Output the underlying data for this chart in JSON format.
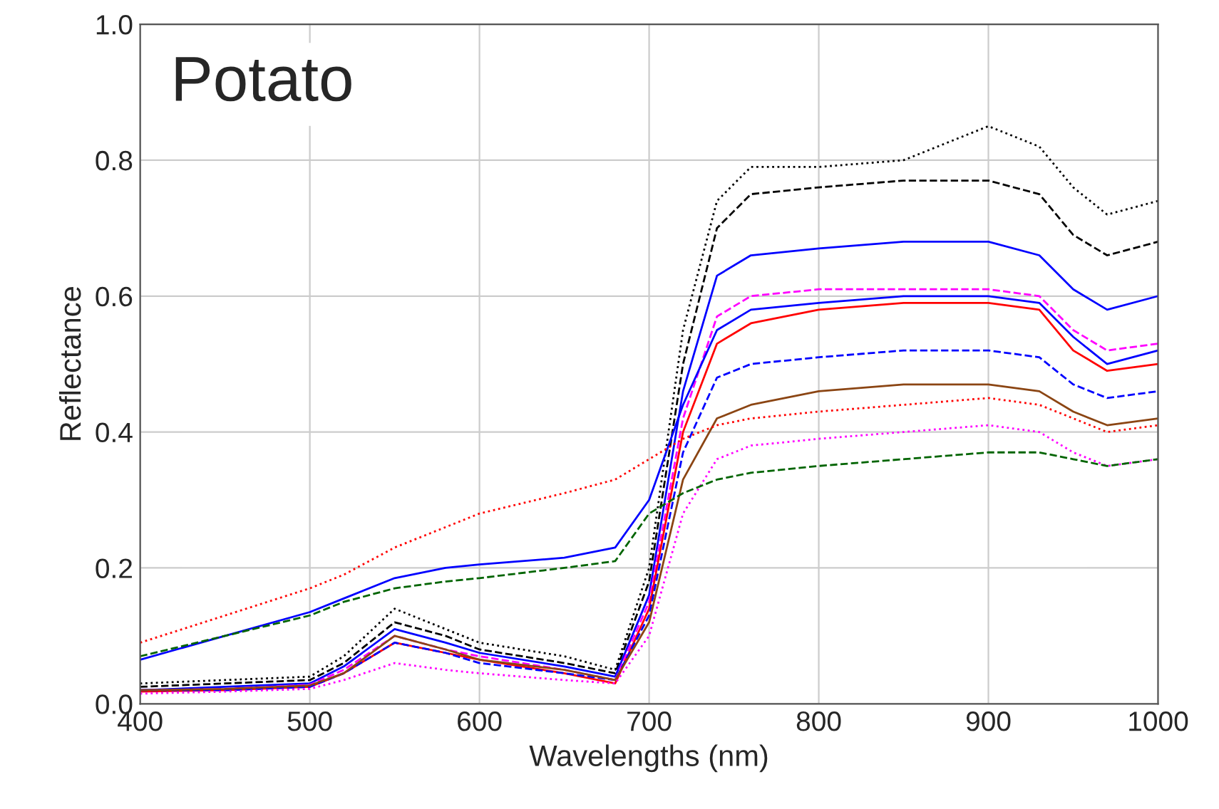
{
  "chart_data": {
    "type": "line",
    "title": "Potato",
    "xlabel": "Wavelengths (nm)",
    "ylabel": "Reflectance",
    "x": [
      400,
      450,
      500,
      520,
      550,
      580,
      600,
      650,
      680,
      700,
      720,
      740,
      760,
      800,
      850,
      900,
      930,
      950,
      970,
      1000
    ],
    "series": [
      {
        "color": "#000000",
        "line_style": "dotted",
        "values": [
          0.03,
          0.035,
          0.04,
          0.07,
          0.14,
          0.11,
          0.09,
          0.07,
          0.05,
          0.2,
          0.55,
          0.74,
          0.79,
          0.79,
          0.8,
          0.85,
          0.82,
          0.76,
          0.72,
          0.74
        ]
      },
      {
        "color": "#000000",
        "line_style": "dashed",
        "values": [
          0.025,
          0.03,
          0.035,
          0.06,
          0.12,
          0.1,
          0.08,
          0.06,
          0.045,
          0.18,
          0.5,
          0.7,
          0.75,
          0.76,
          0.77,
          0.77,
          0.75,
          0.69,
          0.66,
          0.68
        ]
      },
      {
        "color": "#0000ff",
        "line_style": "solid",
        "values": [
          0.02,
          0.025,
          0.03,
          0.055,
          0.11,
          0.09,
          0.075,
          0.055,
          0.04,
          0.16,
          0.46,
          0.63,
          0.66,
          0.67,
          0.68,
          0.68,
          0.66,
          0.61,
          0.58,
          0.6
        ]
      },
      {
        "color": "#ff00ff",
        "line_style": "dashed",
        "values": [
          0.02,
          0.022,
          0.028,
          0.05,
          0.1,
          0.08,
          0.07,
          0.05,
          0.035,
          0.15,
          0.42,
          0.57,
          0.6,
          0.61,
          0.61,
          0.61,
          0.6,
          0.55,
          0.52,
          0.53
        ]
      },
      {
        "color": "#ff0000",
        "line_style": "solid",
        "values": [
          0.018,
          0.02,
          0.025,
          0.045,
          0.09,
          0.075,
          0.065,
          0.045,
          0.03,
          0.14,
          0.4,
          0.53,
          0.56,
          0.58,
          0.59,
          0.59,
          0.58,
          0.52,
          0.49,
          0.5
        ]
      },
      {
        "color": "#0000ff",
        "line_style": "dashed",
        "values": [
          0.02,
          0.02,
          0.025,
          0.045,
          0.09,
          0.075,
          0.06,
          0.045,
          0.035,
          0.13,
          0.37,
          0.48,
          0.5,
          0.51,
          0.52,
          0.52,
          0.51,
          0.47,
          0.45,
          0.46
        ]
      },
      {
        "color": "#8b4513",
        "line_style": "solid",
        "values": [
          0.02,
          0.022,
          0.027,
          0.045,
          0.1,
          0.08,
          0.065,
          0.05,
          0.035,
          0.12,
          0.33,
          0.42,
          0.44,
          0.46,
          0.47,
          0.47,
          0.46,
          0.43,
          0.41,
          0.42
        ]
      },
      {
        "color": "#ff00ff",
        "line_style": "dotted",
        "values": [
          0.015,
          0.018,
          0.022,
          0.035,
          0.06,
          0.05,
          0.045,
          0.035,
          0.03,
          0.1,
          0.28,
          0.36,
          0.38,
          0.39,
          0.4,
          0.41,
          0.4,
          0.37,
          0.35,
          0.36
        ]
      },
      {
        "color": "#0000ff",
        "line_style": "solid",
        "values": [
          0.065,
          0.1,
          0.135,
          0.155,
          0.185,
          0.2,
          0.205,
          0.215,
          0.23,
          0.3,
          0.44,
          0.55,
          0.58,
          0.59,
          0.6,
          0.6,
          0.59,
          0.54,
          0.5,
          0.52
        ]
      },
      {
        "color": "#ff0000",
        "line_style": "dotted",
        "values": [
          0.09,
          0.13,
          0.17,
          0.19,
          0.23,
          0.26,
          0.28,
          0.31,
          0.33,
          0.36,
          0.39,
          0.41,
          0.42,
          0.43,
          0.44,
          0.45,
          0.44,
          0.42,
          0.4,
          0.41
        ]
      },
      {
        "color": "#006400",
        "line_style": "dashed",
        "values": [
          0.07,
          0.1,
          0.13,
          0.15,
          0.17,
          0.18,
          0.185,
          0.2,
          0.21,
          0.28,
          0.31,
          0.33,
          0.34,
          0.35,
          0.36,
          0.37,
          0.37,
          0.36,
          0.35,
          0.36
        ]
      }
    ],
    "xlim": [
      400,
      1000
    ],
    "xticks": [
      400,
      500,
      600,
      700,
      800,
      900,
      1000
    ],
    "ylim": [
      0,
      1
    ],
    "yticks": [
      {
        "value": 0,
        "label": "0.0"
      },
      {
        "value": 0.2,
        "label": "0.2"
      },
      {
        "value": 0.4,
        "label": "0.4"
      },
      {
        "value": 0.6,
        "label": "0.6"
      },
      {
        "value": 0.8,
        "label": "0.8"
      },
      {
        "value": 1,
        "label": "1.0"
      }
    ],
    "grid": true,
    "legend": false
  }
}
